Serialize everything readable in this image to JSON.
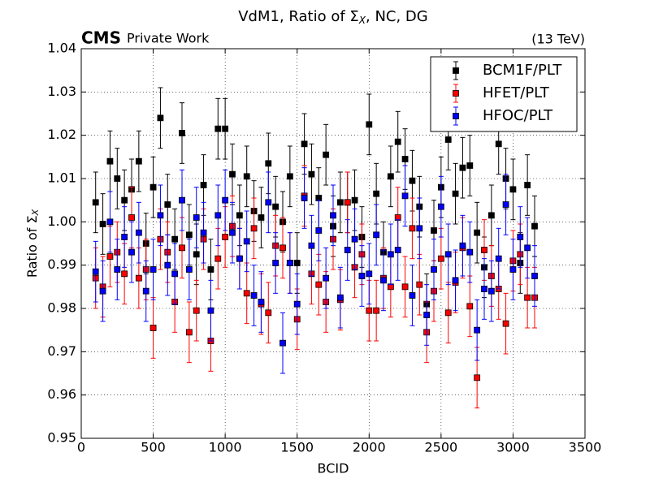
{
  "chart_data": {
    "type": "errorbar",
    "title_parts": [
      "VdM1, Ratio of Σ",
      "X",
      ", NC, DG"
    ],
    "experiment": "CMS",
    "status": "Private Work",
    "energy": "(13 TeV)",
    "xlabel": "BCID",
    "ylabel_parts": [
      "Ratio of Σ",
      "X"
    ],
    "x": [
      100,
      150,
      200,
      250,
      300,
      350,
      400,
      450,
      500,
      550,
      600,
      650,
      700,
      750,
      800,
      850,
      900,
      950,
      1000,
      1050,
      1100,
      1150,
      1200,
      1250,
      1300,
      1350,
      1400,
      1450,
      1500,
      1550,
      1600,
      1650,
      1700,
      1750,
      1800,
      1850,
      1900,
      1950,
      2000,
      2050,
      2100,
      2150,
      2200,
      2250,
      2300,
      2350,
      2400,
      2450,
      2500,
      2550,
      2600,
      2650,
      2700,
      2750,
      2800,
      2850,
      2900,
      2950,
      3000,
      3050,
      3100,
      3150
    ],
    "series": [
      {
        "name": "BCM1F/PLT",
        "color": "#000000",
        "error": 0.007,
        "values": [
          1.0045,
          0.9995,
          1.014,
          1.01,
          1.005,
          1.0075,
          1.014,
          0.995,
          1.008,
          1.024,
          1.004,
          0.996,
          1.0205,
          0.997,
          0.9925,
          1.0085,
          0.989,
          1.0215,
          1.0215,
          1.011,
          1.0015,
          1.0105,
          1.0025,
          1.001,
          1.0135,
          1.0035,
          1.0,
          1.0105,
          0.9905,
          1.018,
          1.011,
          1.0055,
          1.0155,
          0.999,
          1.0045,
          1.0045,
          1.005,
          0.9965,
          1.0225,
          1.0065,
          0.993,
          1.0105,
          1.0185,
          1.0145,
          1.0095,
          1.0035,
          0.981,
          0.998,
          1.008,
          1.019,
          1.0065,
          1.0125,
          1.013,
          0.9975,
          0.9895,
          1.0015,
          1.018,
          1.01,
          1.0075,
          0.9905,
          1.0085,
          0.999
        ]
      },
      {
        "name": "HFET/PLT",
        "color": "#ff0000",
        "error": 0.007,
        "values": [
          0.987,
          0.985,
          0.992,
          0.993,
          0.988,
          1.001,
          0.987,
          0.989,
          0.9755,
          0.996,
          0.993,
          0.9815,
          0.994,
          0.9745,
          0.9795,
          0.996,
          0.9725,
          0.9915,
          0.9965,
          0.999,
          0.9915,
          0.9835,
          0.9985,
          0.981,
          0.979,
          0.9945,
          0.994,
          0.9905,
          0.9775,
          1.006,
          0.988,
          0.9855,
          0.9815,
          0.996,
          0.982,
          1.0045,
          0.9895,
          0.9925,
          0.9795,
          0.9795,
          0.987,
          0.985,
          1.001,
          0.985,
          0.9985,
          0.9855,
          0.9745,
          0.984,
          0.9915,
          0.979,
          0.986,
          0.994,
          0.9805,
          0.964,
          0.9935,
          0.9875,
          0.9845,
          0.9765,
          0.991,
          0.9925,
          0.9825,
          0.9825
        ]
      },
      {
        "name": "HFOC/PLT",
        "color": "#0000ff",
        "error": 0.007,
        "values": [
          0.9885,
          0.984,
          1.0,
          0.989,
          0.9965,
          0.993,
          0.9975,
          0.984,
          0.989,
          1.0015,
          0.99,
          0.988,
          1.005,
          0.989,
          1.001,
          0.9975,
          0.9795,
          1.0015,
          1.005,
          0.9975,
          0.9915,
          0.9955,
          0.983,
          0.9815,
          1.0045,
          0.9905,
          0.972,
          0.9905,
          0.981,
          1.0055,
          0.9945,
          0.998,
          0.987,
          1.0015,
          0.9825,
          0.9935,
          0.996,
          0.9875,
          0.988,
          0.997,
          0.9865,
          0.9925,
          0.9935,
          1.006,
          0.983,
          0.9985,
          0.9785,
          0.989,
          1.0035,
          0.9925,
          0.9865,
          0.9945,
          0.993,
          0.975,
          0.9845,
          0.984,
          0.9915,
          1.004,
          0.989,
          0.9965,
          0.994,
          0.9875
        ]
      }
    ],
    "xlim": [
      0,
      3500
    ],
    "xticks": [
      0,
      500,
      1000,
      1500,
      2000,
      2500,
      3000,
      3500
    ],
    "ylim": [
      0.95,
      1.04
    ],
    "yticks": [
      0.95,
      0.96,
      0.97,
      0.98,
      0.99,
      {
        "value": 1.0,
        "label": "1.00"
      },
      1.01,
      1.02,
      1.03,
      1.04
    ],
    "grid": true,
    "legend": "upper right"
  }
}
